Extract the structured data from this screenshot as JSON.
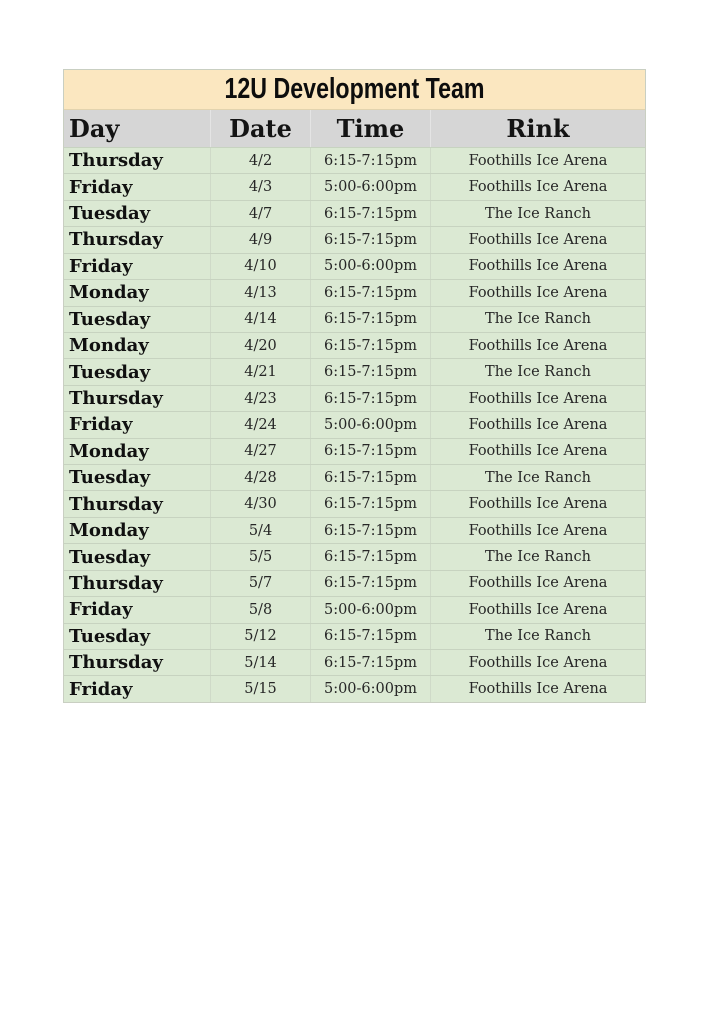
{
  "page": {
    "background_color": "#ffffff"
  },
  "schedule_table": {
    "title": "12U Development Team",
    "colors": {
      "title_background": "#fbe7c0",
      "header_background": "#d6d6d6",
      "row_background": "#dbe9d3",
      "grid_line": "#c7d3c0",
      "text": "#1c1c1c"
    },
    "columns": [
      {
        "key": "day",
        "label": "Day"
      },
      {
        "key": "date",
        "label": "Date"
      },
      {
        "key": "time",
        "label": "Time"
      },
      {
        "key": "rink",
        "label": "Rink"
      }
    ],
    "rows": [
      {
        "day": "Thursday",
        "date": "4/2",
        "time": "6:15-7:15pm",
        "rink": "Foothills Ice Arena"
      },
      {
        "day": "Friday",
        "date": "4/3",
        "time": "5:00-6:00pm",
        "rink": "Foothills Ice Arena"
      },
      {
        "day": "Tuesday",
        "date": "4/7",
        "time": "6:15-7:15pm",
        "rink": "The Ice Ranch"
      },
      {
        "day": "Thursday",
        "date": "4/9",
        "time": "6:15-7:15pm",
        "rink": "Foothills Ice Arena"
      },
      {
        "day": "Friday",
        "date": "4/10",
        "time": "5:00-6:00pm",
        "rink": "Foothills Ice Arena"
      },
      {
        "day": "Monday",
        "date": "4/13",
        "time": "6:15-7:15pm",
        "rink": "Foothills Ice Arena"
      },
      {
        "day": "Tuesday",
        "date": "4/14",
        "time": "6:15-7:15pm",
        "rink": "The Ice Ranch"
      },
      {
        "day": "Monday",
        "date": "4/20",
        "time": "6:15-7:15pm",
        "rink": "Foothills Ice Arena"
      },
      {
        "day": "Tuesday",
        "date": "4/21",
        "time": "6:15-7:15pm",
        "rink": "The Ice Ranch"
      },
      {
        "day": "Thursday",
        "date": "4/23",
        "time": "6:15-7:15pm",
        "rink": "Foothills Ice Arena"
      },
      {
        "day": "Friday",
        "date": "4/24",
        "time": "5:00-6:00pm",
        "rink": "Foothills Ice Arena"
      },
      {
        "day": "Monday",
        "date": "4/27",
        "time": "6:15-7:15pm",
        "rink": "Foothills Ice Arena"
      },
      {
        "day": "Tuesday",
        "date": "4/28",
        "time": "6:15-7:15pm",
        "rink": "The Ice Ranch"
      },
      {
        "day": "Thursday",
        "date": "4/30",
        "time": "6:15-7:15pm",
        "rink": "Foothills Ice Arena"
      },
      {
        "day": "Monday",
        "date": "5/4",
        "time": "6:15-7:15pm",
        "rink": "Foothills Ice Arena"
      },
      {
        "day": "Tuesday",
        "date": "5/5",
        "time": "6:15-7:15pm",
        "rink": "The Ice Ranch"
      },
      {
        "day": "Thursday",
        "date": "5/7",
        "time": "6:15-7:15pm",
        "rink": "Foothills Ice Arena"
      },
      {
        "day": "Friday",
        "date": "5/8",
        "time": "5:00-6:00pm",
        "rink": "Foothills Ice Arena"
      },
      {
        "day": "Tuesday",
        "date": "5/12",
        "time": "6:15-7:15pm",
        "rink": "The Ice Ranch"
      },
      {
        "day": "Thursday",
        "date": "5/14",
        "time": "6:15-7:15pm",
        "rink": "Foothills Ice Arena"
      },
      {
        "day": "Friday",
        "date": "5/15",
        "time": "5:00-6:00pm",
        "rink": "Foothills Ice Arena"
      }
    ]
  }
}
